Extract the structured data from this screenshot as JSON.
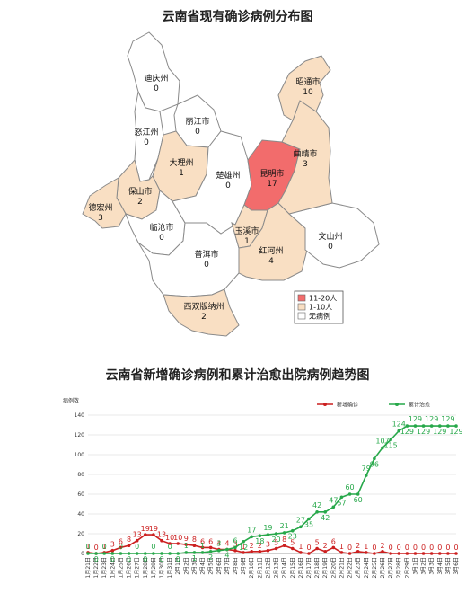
{
  "map_title": "云南省现有确诊病例分布图",
  "chart_title": "云南省新增确诊病例和累计治愈出院病例趋势图",
  "map": {
    "colors": {
      "high": "#f26c6c",
      "low": "#f9dfc3",
      "none": "#ffffff"
    },
    "legend": [
      {
        "label": "11-20人",
        "level": "high"
      },
      {
        "label": "1-10人",
        "level": "low"
      },
      {
        "label": "无病例",
        "level": "none"
      }
    ],
    "regions": [
      {
        "name": "迪庆州",
        "value": "0",
        "level": "none"
      },
      {
        "name": "丽江市",
        "value": "0",
        "level": "none"
      },
      {
        "name": "怒江州",
        "value": "0",
        "level": "none"
      },
      {
        "name": "大理州",
        "value": "1",
        "level": "low"
      },
      {
        "name": "保山市",
        "value": "2",
        "level": "low"
      },
      {
        "name": "德宏州",
        "value": "3",
        "level": "low"
      },
      {
        "name": "临沧市",
        "value": "0",
        "level": "none"
      },
      {
        "name": "普洱市",
        "value": "0",
        "level": "none"
      },
      {
        "name": "西双版纳州",
        "value": "2",
        "level": "low"
      },
      {
        "name": "楚雄州",
        "value": "0",
        "level": "none"
      },
      {
        "name": "昆明市",
        "value": "17",
        "level": "high"
      },
      {
        "name": "玉溪市",
        "value": "1",
        "level": "low"
      },
      {
        "name": "红河州",
        "value": "4",
        "level": "low"
      },
      {
        "name": "文山州",
        "value": "0",
        "level": "none"
      },
      {
        "name": "曲靖市",
        "value": "3",
        "level": "low"
      },
      {
        "name": "昭通市",
        "value": "10",
        "level": "low"
      }
    ]
  },
  "chart_data": {
    "type": "line",
    "title": "云南省新增确诊病例和累计治愈出院病例趋势图",
    "ylabel": "病例数",
    "ylim": [
      0,
      140
    ],
    "yticks": [
      0,
      20,
      40,
      60,
      80,
      100,
      120,
      140
    ],
    "grid": true,
    "legend_position": "top-right",
    "x": [
      "1月21日",
      "1月22日",
      "1月23日",
      "1月24日",
      "1月25日",
      "1月26日",
      "1月27日",
      "1月28日",
      "1月29日",
      "1月30日",
      "1月31日",
      "2月1日",
      "2月2日",
      "2月3日",
      "2月4日",
      "2月5日",
      "2月6日",
      "2月7日",
      "2月8日",
      "2月9日",
      "2月10日",
      "2月11日",
      "2月12日",
      "2月13日",
      "2月14日",
      "2月15日",
      "2月16日",
      "2月17日",
      "2月18日",
      "2月19日",
      "2月20日",
      "2月21日",
      "2月22日",
      "2月23日",
      "2月24日",
      "2月25日",
      "2月26日",
      "2月27日",
      "2月28日",
      "2月29日",
      "3月1日",
      "3月2日",
      "3月3日",
      "3月4日",
      "3月5日",
      "3月6日"
    ],
    "series": [
      {
        "name": "新增确诊",
        "color": "#cc1f1f",
        "values": [
          1,
          0,
          1,
          3,
          6,
          8,
          13,
          19,
          19,
          13,
          10,
          10,
          9,
          8,
          6,
          6,
          4,
          4,
          3,
          1,
          2,
          2,
          3,
          5,
          8,
          5,
          1,
          0,
          5,
          2,
          6,
          1,
          0,
          2,
          1,
          0,
          2,
          0,
          0,
          0,
          0,
          0,
          0,
          0,
          0,
          0
        ]
      },
      {
        "name": "累计治愈",
        "color": "#27a84a",
        "values": [
          0,
          0,
          0,
          0,
          0,
          0,
          0,
          0,
          0,
          0,
          0,
          0,
          1,
          1,
          1,
          2,
          3,
          4,
          6,
          12,
          17,
          18,
          19,
          20,
          21,
          23,
          27,
          35,
          42,
          42,
          47,
          57,
          60,
          60,
          79,
          96,
          107,
          115,
          124,
          129,
          129,
          129,
          129,
          129,
          129,
          129
        ]
      }
    ]
  }
}
